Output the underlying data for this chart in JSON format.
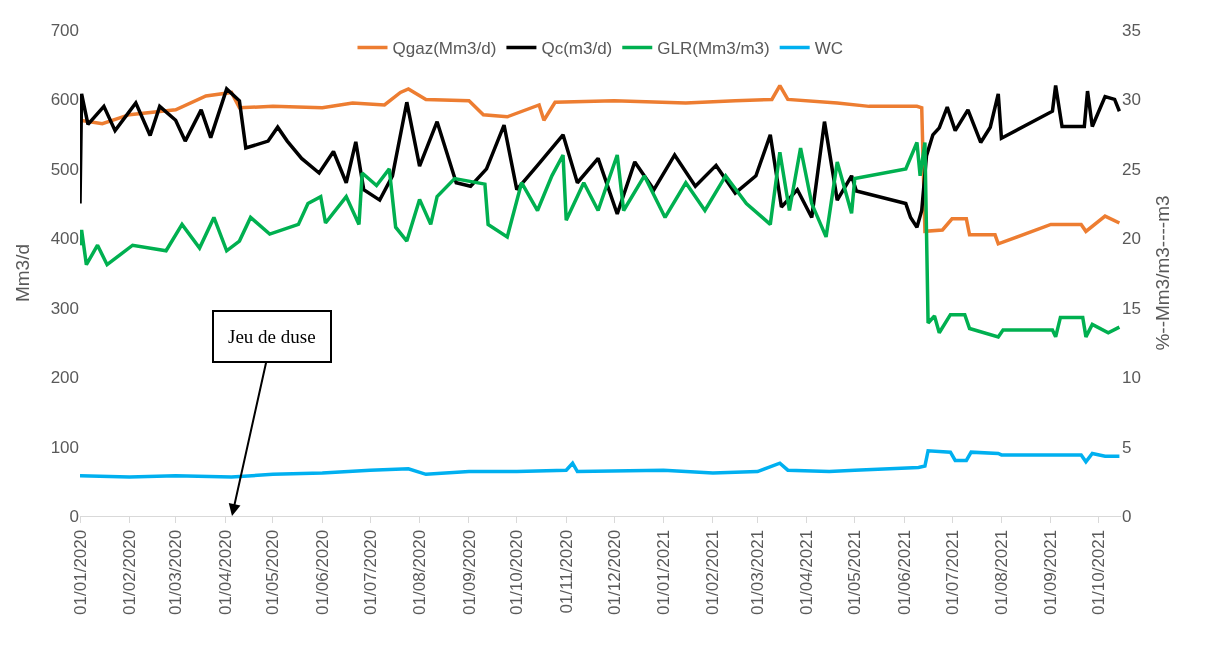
{
  "chart_data": {
    "type": "line",
    "ylabel": "Mm3/d",
    "y2label": "%--Mm3/m3----m3",
    "xlim": [
      "2020-01-01",
      "2021-10-15"
    ],
    "xticks": [
      {
        "value": "2020-01-01",
        "label": "01/01/2020"
      },
      {
        "value": "2020-02-01",
        "label": "01/02/2020"
      },
      {
        "value": "2020-03-01",
        "label": "01/03/2020"
      },
      {
        "value": "2020-04-01",
        "label": "01/04/2020"
      },
      {
        "value": "2020-05-01",
        "label": "01/05/2020"
      },
      {
        "value": "2020-06-01",
        "label": "01/06/2020"
      },
      {
        "value": "2020-07-01",
        "label": "01/07/2020"
      },
      {
        "value": "2020-08-01",
        "label": "01/08/2020"
      },
      {
        "value": "2020-09-01",
        "label": "01/09/2020"
      },
      {
        "value": "2020-10-01",
        "label": "01/10/2020"
      },
      {
        "value": "2020-11-01",
        "label": "01/11/2020"
      },
      {
        "value": "2020-12-01",
        "label": "01/12/2020"
      },
      {
        "value": "2021-01-01",
        "label": "01/01/2021"
      },
      {
        "value": "2021-02-01",
        "label": "01/02/2021"
      },
      {
        "value": "2021-03-01",
        "label": "01/03/2021"
      },
      {
        "value": "2021-04-01",
        "label": "01/04/2021"
      },
      {
        "value": "2021-05-01",
        "label": "01/05/2021"
      },
      {
        "value": "2021-06-01",
        "label": "01/06/2021"
      },
      {
        "value": "2021-07-01",
        "label": "01/07/2021"
      },
      {
        "value": "2021-08-01",
        "label": "01/08/2021"
      },
      {
        "value": "2021-09-01",
        "label": "01/09/2021"
      },
      {
        "value": "2021-10-01",
        "label": "01/10/2021"
      }
    ],
    "ylim": [
      0,
      700
    ],
    "yticks": [
      0,
      100,
      200,
      300,
      400,
      500,
      600,
      700
    ],
    "y2lim": [
      0,
      35
    ],
    "y2ticks": [
      0,
      5,
      10,
      15,
      20,
      25,
      30,
      35
    ],
    "legend": "top",
    "marker": "none",
    "line_style": "solid",
    "annotations": [
      "Jeu de duse"
    ],
    "series": [
      {
        "name": "Qgaz(Mm3/d)",
        "color": "#ed7d31",
        "x": [
          "2020-01-01",
          "2020-01-15",
          "2020-02-01",
          "2020-03-01",
          "2020-03-20",
          "2020-04-05",
          "2020-04-10",
          "2020-05-01",
          "2020-06-01",
          "2020-06-20",
          "2020-07-10",
          "2020-07-20",
          "2020-07-25",
          "2020-08-05",
          "2020-09-01",
          "2020-09-10",
          "2020-09-25",
          "2020-10-15",
          "2020-10-18",
          "2020-10-25",
          "2020-12-01",
          "2021-01-15",
          "2021-02-15",
          "2021-03-10",
          "2021-03-15",
          "2021-03-20",
          "2021-04-20",
          "2021-05-10",
          "2021-06-09",
          "2021-06-12",
          "2021-06-14",
          "2021-06-25",
          "2021-07-01",
          "2021-07-10",
          "2021-07-12",
          "2021-07-28",
          "2021-07-30",
          "2021-09-01",
          "2021-09-20",
          "2021-09-23",
          "2021-10-05",
          "2021-10-14"
        ],
        "values": [
          570,
          565,
          578,
          585,
          605,
          610,
          588,
          590,
          588,
          595,
          592,
          610,
          615,
          600,
          598,
          578,
          575,
          592,
          570,
          596,
          598,
          595,
          598,
          600,
          620,
          600,
          595,
          590,
          590,
          588,
          410,
          412,
          428,
          428,
          405,
          405,
          392,
          420,
          420,
          410,
          432,
          422
        ]
      },
      {
        "name": "Qc(m3/d)",
        "color": "#000000",
        "x": [
          "2020-01-01",
          "2020-01-02",
          "2020-01-06",
          "2020-01-16",
          "2020-01-23",
          "2020-02-05",
          "2020-02-14",
          "2020-02-20",
          "2020-03-01",
          "2020-03-07",
          "2020-03-17",
          "2020-03-23",
          "2020-04-02",
          "2020-04-10",
          "2020-04-14",
          "2020-04-28",
          "2020-05-04",
          "2020-05-10",
          "2020-05-19",
          "2020-05-30",
          "2020-06-08",
          "2020-06-16",
          "2020-06-22",
          "2020-06-27",
          "2020-07-07",
          "2020-07-15",
          "2020-07-24",
          "2020-08-01",
          "2020-08-12",
          "2020-08-24",
          "2020-09-02",
          "2020-09-12",
          "2020-09-23",
          "2020-10-01",
          "2020-10-14",
          "2020-10-30",
          "2020-11-08",
          "2020-11-21",
          "2020-12-03",
          "2020-12-14",
          "2020-12-26",
          "2021-01-08",
          "2021-01-21",
          "2021-02-03",
          "2021-02-15",
          "2021-02-28",
          "2021-03-09",
          "2021-03-16",
          "2021-03-26",
          "2021-04-04",
          "2021-04-12",
          "2021-04-20",
          "2021-04-29",
          "2021-05-02",
          "2021-06-02",
          "2021-06-05",
          "2021-06-09",
          "2021-06-12",
          "2021-06-15",
          "2021-06-19",
          "2021-06-23",
          "2021-06-28",
          "2021-07-03",
          "2021-07-11",
          "2021-07-19",
          "2021-07-25",
          "2021-07-30",
          "2021-08-01",
          "2021-09-02",
          "2021-09-04",
          "2021-09-08",
          "2021-09-22",
          "2021-09-24",
          "2021-09-27",
          "2021-10-05",
          "2021-10-11",
          "2021-10-14"
        ],
        "values": [
          450,
          608,
          564,
          590,
          555,
          595,
          548,
          590,
          570,
          540,
          585,
          545,
          615,
          598,
          530,
          540,
          560,
          540,
          515,
          494,
          525,
          480,
          539,
          470,
          455,
          490,
          596,
          504,
          568,
          480,
          475,
          500,
          563,
          470,
          505,
          549,
          480,
          515,
          435,
          510,
          470,
          520,
          475,
          505,
          465,
          490,
          549,
          445,
          470,
          430,
          568,
          455,
          490,
          468,
          450,
          430,
          416,
          440,
          519,
          549,
          559,
          589,
          555,
          585,
          538,
          560,
          608,
          544,
          583,
          620,
          561,
          561,
          612,
          561,
          604,
          600,
          583
        ]
      },
      {
        "name": "GLR(Mm3/m3)",
        "color": "#00b050",
        "axis": "y2",
        "x": [
          "2020-01-01",
          "2020-01-02",
          "2020-01-05",
          "2020-01-12",
          "2020-01-18",
          "2020-02-03",
          "2020-02-24",
          "2020-03-05",
          "2020-03-16",
          "2020-03-25",
          "2020-04-02",
          "2020-04-10",
          "2020-04-17",
          "2020-04-29",
          "2020-05-17",
          "2020-05-23",
          "2020-05-31",
          "2020-06-03",
          "2020-06-16",
          "2020-06-24",
          "2020-06-26",
          "2020-07-05",
          "2020-07-13",
          "2020-07-17",
          "2020-07-24",
          "2020-08-01",
          "2020-08-08",
          "2020-08-12",
          "2020-08-23",
          "2020-09-11",
          "2020-09-13",
          "2020-09-25",
          "2020-10-04",
          "2020-10-14",
          "2020-10-23",
          "2020-10-30",
          "2020-11-01",
          "2020-11-12",
          "2020-11-21",
          "2020-12-03",
          "2020-12-07",
          "2020-12-20",
          "2021-01-02",
          "2021-01-15",
          "2021-01-27",
          "2021-02-09",
          "2021-02-22",
          "2021-03-09",
          "2021-03-15",
          "2021-03-21",
          "2021-03-28",
          "2021-04-04",
          "2021-04-13",
          "2021-04-20",
          "2021-04-29",
          "2021-05-01",
          "2021-06-02",
          "2021-06-09",
          "2021-06-11",
          "2021-06-14",
          "2021-06-16",
          "2021-06-20",
          "2021-06-23",
          "2021-06-30",
          "2021-07-09",
          "2021-07-12",
          "2021-07-30",
          "2021-08-02",
          "2021-09-02",
          "2021-09-04",
          "2021-09-07",
          "2021-09-21",
          "2021-09-23",
          "2021-09-27",
          "2021-10-07",
          "2021-10-14"
        ],
        "values": [
          19.5,
          20.6,
          18.1,
          19.5,
          18.1,
          19.5,
          19.1,
          21.0,
          19.3,
          21.5,
          19.1,
          19.8,
          21.5,
          20.3,
          21.0,
          22.5,
          23.0,
          21.1,
          23.0,
          21.0,
          24.7,
          23.8,
          25.0,
          20.8,
          19.8,
          22.8,
          21.0,
          23.0,
          24.3,
          23.9,
          21.0,
          20.1,
          24.0,
          22.0,
          24.5,
          26.0,
          21.3,
          24.0,
          22.0,
          26.0,
          22.0,
          24.5,
          21.5,
          24.0,
          22.0,
          24.5,
          22.5,
          21.0,
          26.2,
          22.0,
          26.5,
          22.5,
          20.1,
          25.5,
          21.8,
          24.3,
          25.0,
          26.9,
          24.5,
          26.9,
          13.9,
          14.4,
          13.2,
          14.5,
          14.5,
          13.5,
          12.9,
          13.4,
          13.4,
          12.9,
          14.3,
          14.3,
          12.9,
          13.8,
          13.2,
          13.6
        ]
      },
      {
        "name": "WC",
        "color": "#00b0f0",
        "axis": "y2",
        "x": [
          "2020-01-01",
          "2020-02-01",
          "2020-03-01",
          "2020-04-05",
          "2020-05-01",
          "2020-06-01",
          "2020-07-01",
          "2020-07-25",
          "2020-08-05",
          "2020-09-01",
          "2020-10-01",
          "2020-11-01",
          "2020-11-05",
          "2020-11-08",
          "2021-01-01",
          "2021-02-01",
          "2021-03-01",
          "2021-03-15",
          "2021-03-20",
          "2021-04-15",
          "2021-05-01",
          "2021-06-10",
          "2021-06-14",
          "2021-06-16",
          "2021-06-30",
          "2021-07-03",
          "2021-07-10",
          "2021-07-13",
          "2021-07-30",
          "2021-08-01",
          "2021-09-20",
          "2021-09-23",
          "2021-09-27",
          "2021-10-05",
          "2021-10-14"
        ],
        "values": [
          2.9,
          2.8,
          2.9,
          2.8,
          3.0,
          3.1,
          3.3,
          3.4,
          3.0,
          3.2,
          3.2,
          3.3,
          3.8,
          3.2,
          3.3,
          3.1,
          3.2,
          3.8,
          3.3,
          3.2,
          3.3,
          3.5,
          3.6,
          4.7,
          4.6,
          4.0,
          4.0,
          4.6,
          4.5,
          4.4,
          4.4,
          3.9,
          4.5,
          4.3,
          4.3
        ]
      }
    ]
  }
}
